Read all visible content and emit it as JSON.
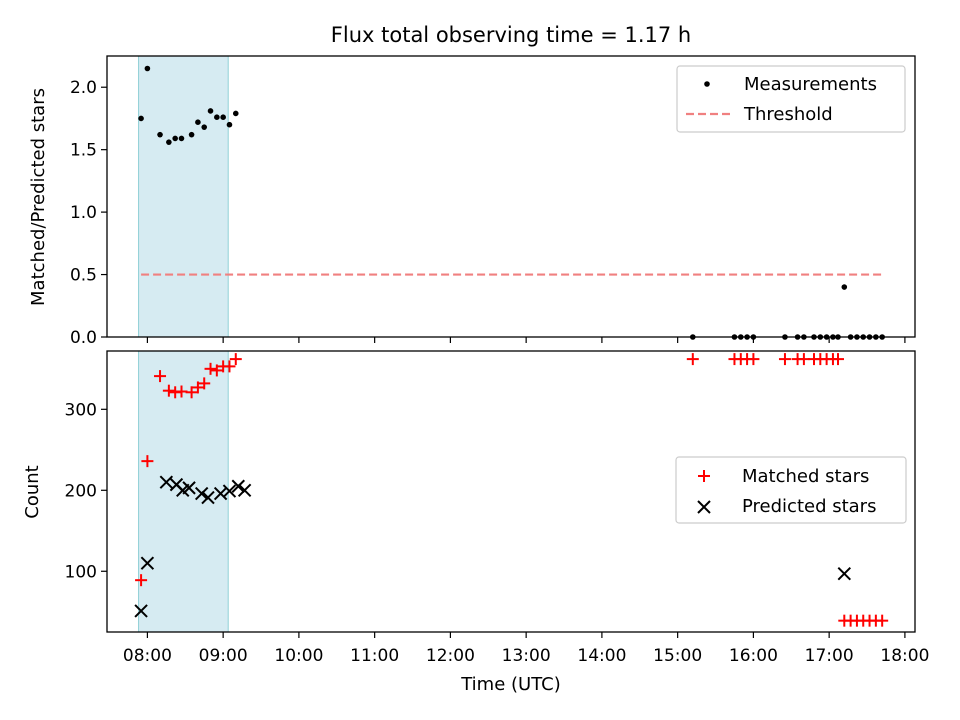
{
  "title": "Flux total observing time = 1.17 h",
  "chart_data": [
    {
      "type": "scatter",
      "panel": "top",
      "title": "Flux total observing time = 1.17 h",
      "xlabel": "",
      "ylabel": "Matched/Predicted stars",
      "ylim": [
        0.0,
        2.25
      ],
      "yticks": [
        0.0,
        0.5,
        1.0,
        1.5,
        2.0
      ],
      "ytick_labels": [
        "0.0",
        "0.5",
        "1.0",
        "1.5",
        "2.0"
      ],
      "grid": false,
      "legend_position": "top-right",
      "legend": [
        "Measurements",
        "Threshold"
      ],
      "shaded_region": {
        "x_start": "07:53",
        "x_end": "09:04",
        "color": "#add8e6"
      },
      "series": [
        {
          "name": "Measurements",
          "color": "#000000",
          "marker": "dot",
          "points": [
            [
              "07:55",
              1.75
            ],
            [
              "08:00",
              2.15
            ],
            [
              "08:10",
              1.62
            ],
            [
              "08:17",
              1.56
            ],
            [
              "08:22",
              1.59
            ],
            [
              "08:27",
              1.59
            ],
            [
              "08:35",
              1.62
            ],
            [
              "08:40",
              1.72
            ],
            [
              "08:45",
              1.68
            ],
            [
              "08:50",
              1.81
            ],
            [
              "08:55",
              1.76
            ],
            [
              "09:00",
              1.76
            ],
            [
              "09:05",
              1.7
            ],
            [
              "09:10",
              1.79
            ],
            [
              "15:12",
              0.0
            ],
            [
              "15:45",
              0.0
            ],
            [
              "15:50",
              0.0
            ],
            [
              "15:55",
              0.0
            ],
            [
              "16:00",
              0.0
            ],
            [
              "16:25",
              0.0
            ],
            [
              "16:35",
              0.0
            ],
            [
              "16:40",
              0.0
            ],
            [
              "16:48",
              0.0
            ],
            [
              "16:53",
              0.0
            ],
            [
              "16:58",
              0.0
            ],
            [
              "17:03",
              0.0
            ],
            [
              "17:07",
              0.0
            ],
            [
              "17:12",
              0.4
            ],
            [
              "17:17",
              0.0
            ],
            [
              "17:22",
              0.0
            ],
            [
              "17:27",
              0.0
            ],
            [
              "17:32",
              0.0
            ],
            [
              "17:37",
              0.0
            ],
            [
              "17:42",
              0.0
            ]
          ]
        },
        {
          "name": "Threshold",
          "color": "#f08080",
          "style": "dashed",
          "points": [
            [
              "07:55",
              0.5
            ],
            [
              "17:42",
              0.5
            ]
          ]
        }
      ]
    },
    {
      "type": "scatter",
      "panel": "bottom",
      "xlabel": "Time (UTC)",
      "ylabel": "Count",
      "ylim": [
        25,
        372
      ],
      "yticks": [
        100,
        200,
        300
      ],
      "ytick_labels": [
        "100",
        "200",
        "300"
      ],
      "xlim": [
        "07:28",
        "18:08"
      ],
      "xticks": [
        "08:00",
        "09:00",
        "10:00",
        "11:00",
        "12:00",
        "13:00",
        "14:00",
        "15:00",
        "16:00",
        "17:00",
        "18:00"
      ],
      "xtick_labels": [
        "08:00",
        "09:00",
        "10:00",
        "11:00",
        "12:00",
        "13:00",
        "14:00",
        "15:00",
        "16:00",
        "17:00",
        "18:00"
      ],
      "grid": false,
      "legend_position": "center-right",
      "legend": [
        "Matched stars",
        "Predicted stars"
      ],
      "shaded_region": {
        "x_start": "07:53",
        "x_end": "09:04",
        "color": "#add8e6"
      },
      "series": [
        {
          "name": "Matched stars",
          "color": "#ff0000",
          "marker": "plus",
          "points": [
            [
              "07:55",
              89
            ],
            [
              "08:00",
              236
            ],
            [
              "08:10",
              341
            ],
            [
              "08:17",
              323
            ],
            [
              "08:22",
              321
            ],
            [
              "08:27",
              322
            ],
            [
              "08:35",
              321
            ],
            [
              "08:40",
              327
            ],
            [
              "08:45",
              332
            ],
            [
              "08:50",
              350
            ],
            [
              "08:55",
              348
            ],
            [
              "09:00",
              353
            ],
            [
              "09:05",
              353
            ],
            [
              "09:10",
              362
            ],
            [
              "15:12",
              362
            ],
            [
              "15:45",
              362
            ],
            [
              "15:50",
              362
            ],
            [
              "15:55",
              362
            ],
            [
              "16:00",
              362
            ],
            [
              "16:25",
              362
            ],
            [
              "16:35",
              362
            ],
            [
              "16:40",
              362
            ],
            [
              "16:48",
              362
            ],
            [
              "16:53",
              362
            ],
            [
              "16:58",
              362
            ],
            [
              "17:03",
              362
            ],
            [
              "17:07",
              362
            ],
            [
              "17:12",
              39
            ],
            [
              "17:17",
              39
            ],
            [
              "17:22",
              39
            ],
            [
              "17:27",
              39
            ],
            [
              "17:32",
              39
            ],
            [
              "17:37",
              39
            ],
            [
              "17:42",
              39
            ]
          ]
        },
        {
          "name": "Predicted stars",
          "color": "#000000",
          "marker": "x",
          "points": [
            [
              "07:55",
              51
            ],
            [
              "08:00",
              110
            ],
            [
              "08:15",
              210
            ],
            [
              "08:23",
              207
            ],
            [
              "08:28",
              200
            ],
            [
              "08:33",
              203
            ],
            [
              "08:43",
              196
            ],
            [
              "08:48",
              191
            ],
            [
              "08:58",
              196
            ],
            [
              "09:05",
              199
            ],
            [
              "09:12",
              205
            ],
            [
              "09:17",
              200
            ],
            [
              "17:12",
              97
            ]
          ]
        }
      ]
    }
  ]
}
